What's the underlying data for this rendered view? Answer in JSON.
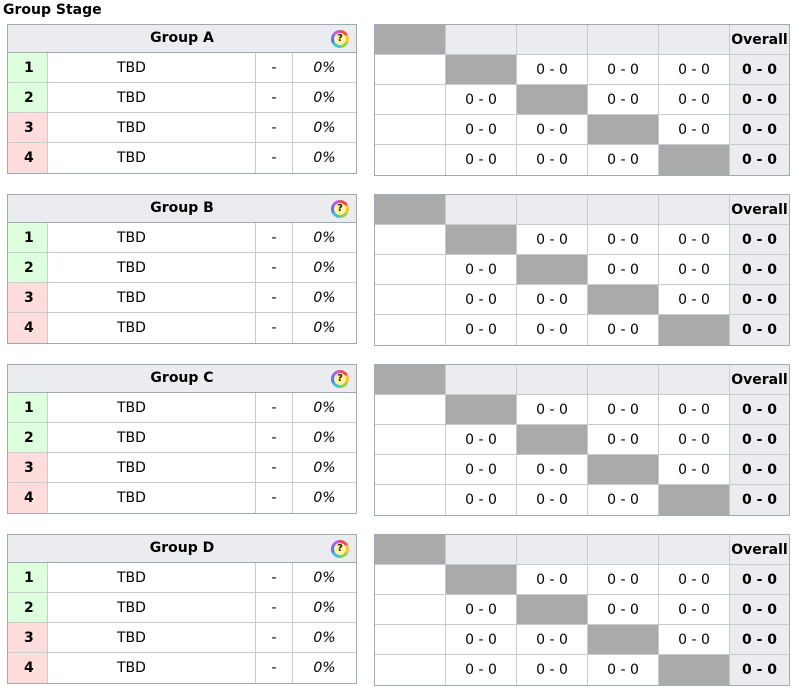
{
  "page_title": "Group Stage",
  "help_icon_glyph": "?",
  "overall_label": "Overall",
  "groups": [
    {
      "title": "Group A",
      "rows": [
        {
          "rank": "1",
          "team": "TBD",
          "record": "-",
          "pct": "0%",
          "status": "advance"
        },
        {
          "rank": "2",
          "team": "TBD",
          "record": "-",
          "pct": "0%",
          "status": "advance"
        },
        {
          "rank": "3",
          "team": "TBD",
          "record": "-",
          "pct": "0%",
          "status": "eliminated"
        },
        {
          "rank": "4",
          "team": "TBD",
          "record": "-",
          "pct": "0%",
          "status": "eliminated"
        }
      ],
      "matrix": [
        [
          null,
          "0 - 0",
          "0 - 0",
          "0 - 0"
        ],
        [
          "0 - 0",
          null,
          "0 - 0",
          "0 - 0"
        ],
        [
          "0 - 0",
          "0 - 0",
          null,
          "0 - 0"
        ],
        [
          "0 - 0",
          "0 - 0",
          "0 - 0",
          null
        ]
      ],
      "overall": [
        "0 - 0",
        "0 - 0",
        "0 - 0",
        "0 - 0"
      ]
    },
    {
      "title": "Group B",
      "rows": [
        {
          "rank": "1",
          "team": "TBD",
          "record": "-",
          "pct": "0%",
          "status": "advance"
        },
        {
          "rank": "2",
          "team": "TBD",
          "record": "-",
          "pct": "0%",
          "status": "advance"
        },
        {
          "rank": "3",
          "team": "TBD",
          "record": "-",
          "pct": "0%",
          "status": "eliminated"
        },
        {
          "rank": "4",
          "team": "TBD",
          "record": "-",
          "pct": "0%",
          "status": "eliminated"
        }
      ],
      "matrix": [
        [
          null,
          "0 - 0",
          "0 - 0",
          "0 - 0"
        ],
        [
          "0 - 0",
          null,
          "0 - 0",
          "0 - 0"
        ],
        [
          "0 - 0",
          "0 - 0",
          null,
          "0 - 0"
        ],
        [
          "0 - 0",
          "0 - 0",
          "0 - 0",
          null
        ]
      ],
      "overall": [
        "0 - 0",
        "0 - 0",
        "0 - 0",
        "0 - 0"
      ]
    },
    {
      "title": "Group C",
      "rows": [
        {
          "rank": "1",
          "team": "TBD",
          "record": "-",
          "pct": "0%",
          "status": "advance"
        },
        {
          "rank": "2",
          "team": "TBD",
          "record": "-",
          "pct": "0%",
          "status": "advance"
        },
        {
          "rank": "3",
          "team": "TBD",
          "record": "-",
          "pct": "0%",
          "status": "eliminated"
        },
        {
          "rank": "4",
          "team": "TBD",
          "record": "-",
          "pct": "0%",
          "status": "eliminated"
        }
      ],
      "matrix": [
        [
          null,
          "0 - 0",
          "0 - 0",
          "0 - 0"
        ],
        [
          "0 - 0",
          null,
          "0 - 0",
          "0 - 0"
        ],
        [
          "0 - 0",
          "0 - 0",
          null,
          "0 - 0"
        ],
        [
          "0 - 0",
          "0 - 0",
          "0 - 0",
          null
        ]
      ],
      "overall": [
        "0 - 0",
        "0 - 0",
        "0 - 0",
        "0 - 0"
      ]
    },
    {
      "title": "Group D",
      "rows": [
        {
          "rank": "1",
          "team": "TBD",
          "record": "-",
          "pct": "0%",
          "status": "advance"
        },
        {
          "rank": "2",
          "team": "TBD",
          "record": "-",
          "pct": "0%",
          "status": "advance"
        },
        {
          "rank": "3",
          "team": "TBD",
          "record": "-",
          "pct": "0%",
          "status": "eliminated"
        },
        {
          "rank": "4",
          "team": "TBD",
          "record": "-",
          "pct": "0%",
          "status": "eliminated"
        }
      ],
      "matrix": [
        [
          null,
          "0 - 0",
          "0 - 0",
          "0 - 0"
        ],
        [
          "0 - 0",
          null,
          "0 - 0",
          "0 - 0"
        ],
        [
          "0 - 0",
          "0 - 0",
          null,
          "0 - 0"
        ],
        [
          "0 - 0",
          "0 - 0",
          "0 - 0",
          null
        ]
      ],
      "overall": [
        "0 - 0",
        "0 - 0",
        "0 - 0",
        "0 - 0"
      ]
    }
  ]
}
